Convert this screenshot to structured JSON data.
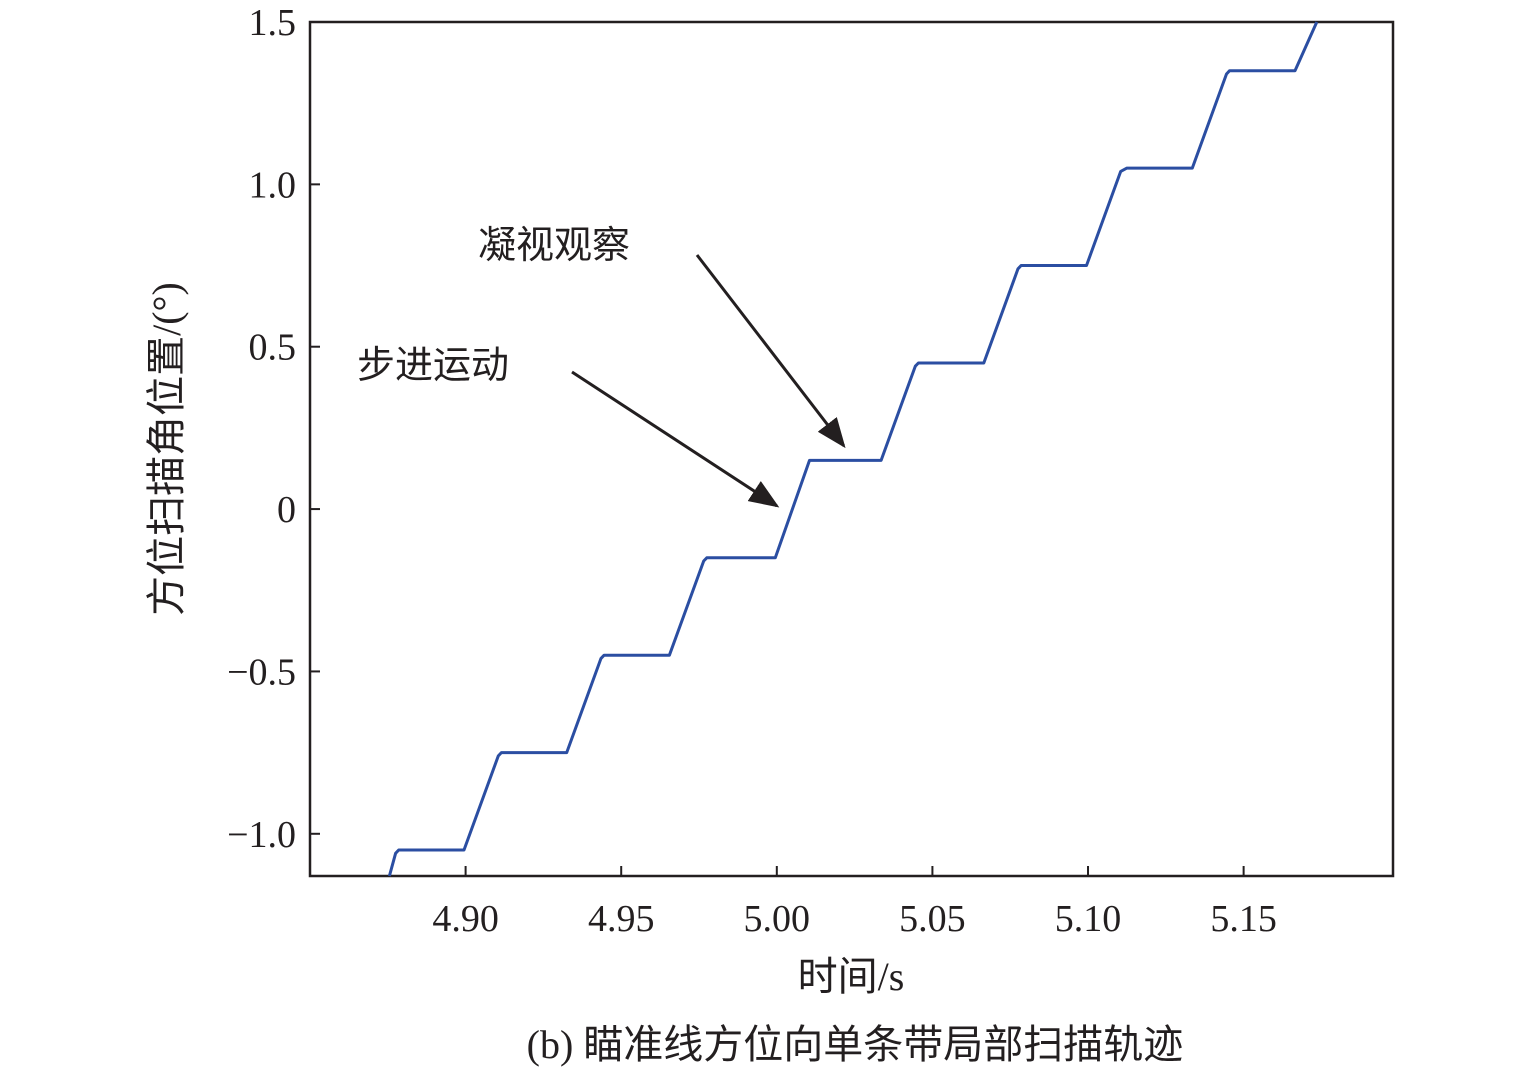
{
  "chart_data": {
    "type": "line",
    "caption": "(b) 瞄准线方位向单条带局部扫描轨迹",
    "xlabel": "时间/s",
    "ylabel": "方位扫描角位置/(°)",
    "xlim": [
      4.85,
      5.198
    ],
    "ylim": [
      -1.13,
      1.5
    ],
    "xticks": [
      4.9,
      4.95,
      5.0,
      5.05,
      5.1,
      5.15
    ],
    "xtick_labels": [
      "4.90",
      "4.95",
      "5.00",
      "5.05",
      "5.10",
      "5.15"
    ],
    "yticks": [
      -1.0,
      -0.5,
      0,
      0.5,
      1.0,
      1.5
    ],
    "ytick_labels": [
      "−1.0",
      "−0.5",
      "0",
      "0.5",
      "1.0",
      "1.5"
    ],
    "grid": false,
    "series": [
      {
        "color": "#2b4ea2",
        "x": [
          4.8755,
          4.8775,
          4.8785,
          4.8995,
          4.9105,
          4.9115,
          4.9325,
          4.9435,
          4.9445,
          4.9655,
          4.9765,
          4.9775,
          4.9995,
          5.0105,
          5.0125,
          5.0335,
          5.0445,
          5.0455,
          5.0665,
          5.0775,
          5.0785,
          5.0995,
          5.1105,
          5.1125,
          5.1335,
          5.1445,
          5.1455,
          5.1665,
          5.1735
        ],
        "y": [
          -1.13,
          -1.06,
          -1.05,
          -1.05,
          -0.76,
          -0.75,
          -0.75,
          -0.46,
          -0.45,
          -0.45,
          -0.16,
          -0.15,
          -0.15,
          0.15,
          0.15,
          0.15,
          0.44,
          0.45,
          0.45,
          0.74,
          0.75,
          0.75,
          1.04,
          1.05,
          1.05,
          1.34,
          1.35,
          1.35,
          1.5
        ]
      }
    ],
    "annotations": [
      {
        "text": "步进运动",
        "point": [
          5.0,
          0.01
        ]
      },
      {
        "text": "凝视观察",
        "point": [
          5.0215,
          0.195
        ]
      }
    ]
  }
}
